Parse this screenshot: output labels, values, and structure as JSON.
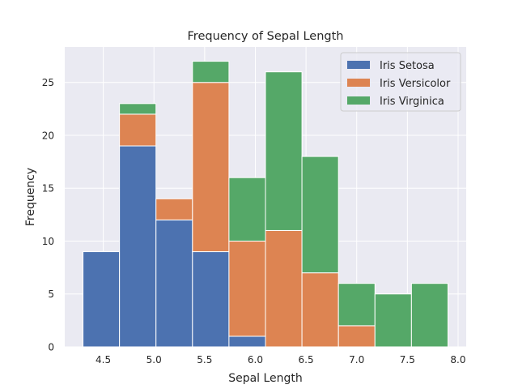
{
  "chart_data": {
    "type": "bar",
    "stacked": true,
    "title": "Frequency of Sepal Length",
    "xlabel": "Sepal Length",
    "ylabel": "Frequency",
    "bin_edges": [
      4.3,
      4.66,
      5.02,
      5.38,
      5.74,
      6.1,
      6.46,
      6.82,
      7.18,
      7.54,
      7.9
    ],
    "series": [
      {
        "name": "Iris Setosa",
        "color": "#4c72b0",
        "values": [
          9,
          19,
          12,
          9,
          1,
          0,
          0,
          0,
          0,
          0
        ]
      },
      {
        "name": "Iris Versicolor",
        "color": "#dd8452",
        "values": [
          0,
          3,
          2,
          16,
          9,
          11,
          7,
          2,
          0,
          0
        ]
      },
      {
        "name": "Iris Virginica",
        "color": "#55a868",
        "values": [
          0,
          1,
          0,
          2,
          6,
          15,
          11,
          4,
          5,
          6
        ]
      }
    ],
    "xlim": [
      4.12,
      8.08
    ],
    "ylim": [
      0,
      28.35
    ],
    "xticks": [
      4.5,
      5.0,
      5.5,
      6.0,
      6.5,
      7.0,
      7.5,
      8.0
    ],
    "xtick_labels": [
      "4.5",
      "5.0",
      "5.5",
      "6.0",
      "6.5",
      "7.0",
      "7.5",
      "8.0"
    ],
    "yticks": [
      0,
      5,
      10,
      15,
      20,
      25
    ],
    "ytick_labels": [
      "0",
      "5",
      "10",
      "15",
      "20",
      "25"
    ],
    "grid": true,
    "legend_position": "top-right",
    "background_color": "#eaeaf2",
    "grid_color": "#ffffff"
  }
}
